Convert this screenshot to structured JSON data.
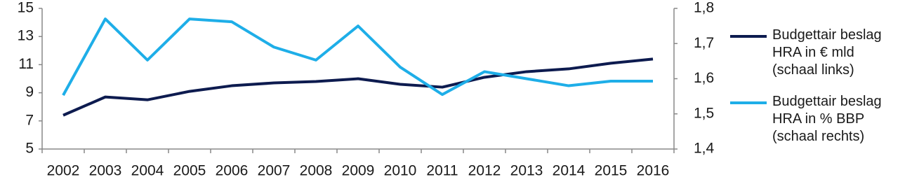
{
  "chart_data": {
    "type": "line",
    "categories": [
      "2002",
      "2003",
      "2004",
      "2005",
      "2006",
      "2007",
      "2008",
      "2009",
      "2010",
      "2011",
      "2012",
      "2013",
      "2014",
      "2015",
      "2016"
    ],
    "series": [
      {
        "name": "Budgettair beslag HRA in € mld (schaal links)",
        "color": "#0d1b4f",
        "values": [
          7.4,
          8.7,
          8.5,
          9.1,
          9.5,
          9.7,
          9.8,
          10.0,
          9.6,
          9.4,
          10.1,
          10.5,
          10.7,
          11.1,
          11.4
        ]
      },
      {
        "name": "Budgettair beslag HRA in % BBP (schaal rechts)",
        "color": "#1eaee8",
        "axis": "y2",
        "values": [
          1.553,
          1.77,
          1.653,
          1.77,
          1.762,
          1.69,
          1.653,
          1.75,
          1.633,
          1.555,
          1.62,
          1.6,
          1.58,
          1.593,
          1.593
        ]
      }
    ],
    "ylim": [
      5,
      15
    ],
    "yticks": [
      5,
      7,
      9,
      11,
      13,
      15
    ],
    "y2lim": [
      1.4,
      1.8
    ],
    "y2ticks": [
      {
        "value": 1.4,
        "label": "1,4"
      },
      {
        "value": 1.5,
        "label": "1,5"
      },
      {
        "value": 1.6,
        "label": "1,6"
      },
      {
        "value": 1.7,
        "label": "1,7"
      },
      {
        "value": 1.8,
        "label": "1,8"
      }
    ],
    "legend": "right"
  }
}
